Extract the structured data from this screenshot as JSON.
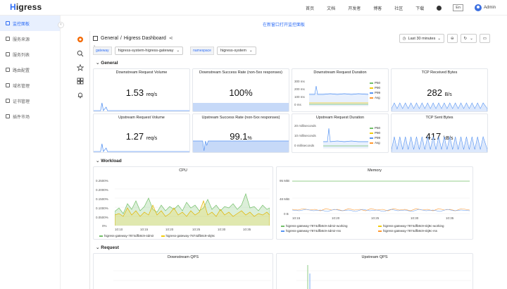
{
  "brand": {
    "logo_h": "H",
    "logo_rest": "igress"
  },
  "topnav": {
    "links": [
      "首页",
      "文档",
      "开发者",
      "博客",
      "社区",
      "下载"
    ],
    "lang": "En",
    "user": "Admin"
  },
  "sidebar": {
    "items": [
      {
        "label": "监控面板",
        "active": true
      },
      {
        "label": "服务来源"
      },
      {
        "label": "服务列表"
      },
      {
        "label": "路由配置"
      },
      {
        "label": "域名管理"
      },
      {
        "label": "证书管理"
      },
      {
        "label": "插件市场"
      }
    ]
  },
  "banner": "在新窗口打开监控面板",
  "dashboard": {
    "folder": "General",
    "separator": "/",
    "title": "Higress Dashboard",
    "time_range": "Last 30 minutes",
    "vars": [
      {
        "label": "gateway",
        "value": "higress-system-higress-gateway"
      },
      {
        "label": "namespace",
        "value": "higress-system"
      }
    ]
  },
  "rows": {
    "general": "General",
    "workload": "Workload",
    "request": "Request"
  },
  "panels": {
    "downstream_volume": {
      "title": "Downstream Request Volume",
      "value": "1.53",
      "unit": "req/s"
    },
    "downstream_success": {
      "title": "Downstream Success Rate (non-5xx responses)",
      "value": "100%"
    },
    "downstream_duration": {
      "title": "Downstream Request Duration",
      "y_ticks": [
        "300 ms",
        "200 ms",
        "100 ms",
        "0 ms"
      ],
      "legend": [
        "P50",
        "P90",
        "P99",
        "Avg"
      ]
    },
    "tcp_received": {
      "title": "TCP Received Bytes",
      "value": "282",
      "unit": "B/s"
    },
    "upstream_volume": {
      "title": "Upstream Request Volume",
      "value": "1.27",
      "unit": "req/s"
    },
    "upstream_success": {
      "title": "Upstream Success Rate (non-5xx responses)",
      "value": "99.1",
      "unit": "%"
    },
    "upstream_duration": {
      "title": "Upstream Request Duration",
      "y_ticks": [
        "20 milliseconds",
        "10 milliseconds",
        "0 milliseconds"
      ],
      "legend": [
        "P50",
        "P90",
        "P99",
        "Avg"
      ]
    },
    "tcp_sent": {
      "title": "TCP Sent Bytes",
      "value": "417",
      "unit": "kB/s"
    },
    "cpu": {
      "title": "CPU",
      "y_ticks": [
        "0.2500%",
        "0.2000%",
        "0.1500%",
        "0.1000%",
        "0.0500%",
        "0%"
      ],
      "x_ticks": [
        "10:10",
        "10:15",
        "10:20",
        "10:25",
        "10:30",
        "10:35"
      ],
      "legend": [
        "higress-gateway-7874dfb8c9-4dmir",
        "higress-gateway-7874dfb8c9-skj9c"
      ]
    },
    "memory": {
      "title": "Memory",
      "y_ticks": [
        "95 MiB",
        "48 MiB",
        "0 B"
      ],
      "x_ticks": [
        "10:15",
        "10:20",
        "10:25",
        "10:30",
        "10:35"
      ],
      "legend": [
        "higress-gateway-7874dfb8c9-4dmir-working",
        "higress-gateway-7874dfb8c9-skj9c-working",
        "higress-gateway-7874dfb8c9-4dmir-rss",
        "higress-gateway-7874dfb8c9-skj9c-rss"
      ]
    },
    "downstream_qps": {
      "title": "Downstream QPS"
    },
    "upstream_qps": {
      "title": "Upstream QPS"
    }
  },
  "colors": {
    "accent": "#2f6ef5",
    "green": "#73bf69",
    "yellow": "#f2cc0c",
    "blue": "#5794f2",
    "orange": "#ff9830"
  }
}
